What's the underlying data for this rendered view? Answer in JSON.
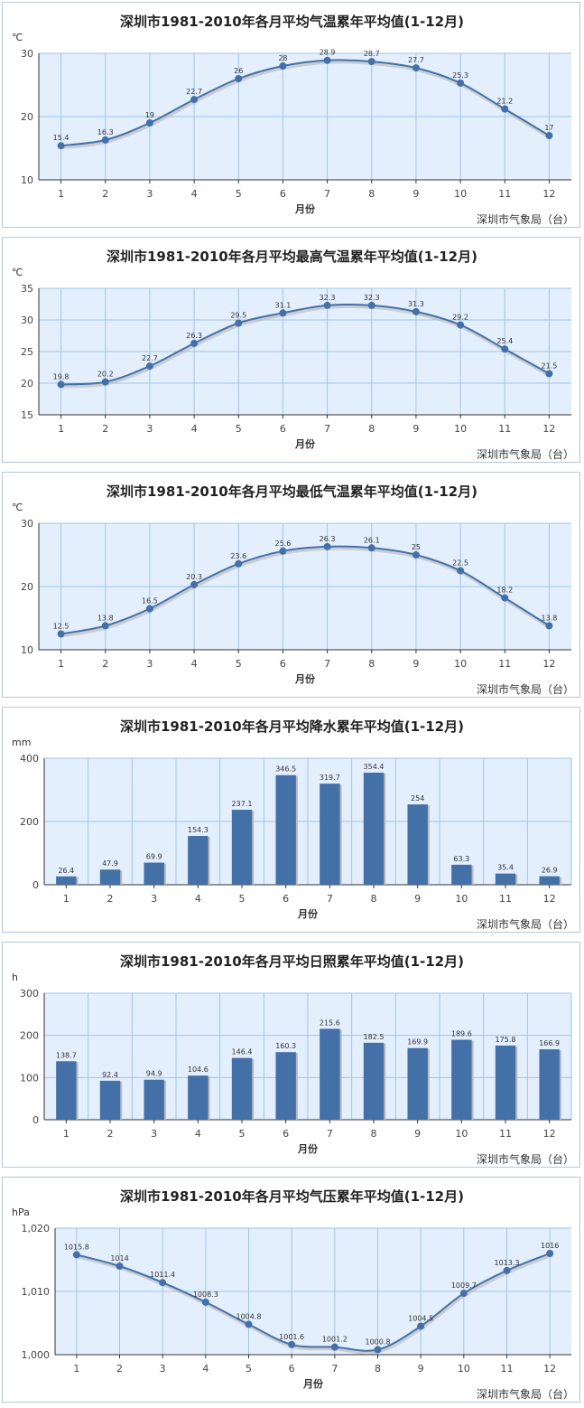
{
  "colors": {
    "plot_bg": "#e4effd",
    "grid": "#9cc6e6",
    "series": "#4470a8",
    "line_shadow": "#b8b8b8",
    "axis": "#333333"
  },
  "chart_data": [
    {
      "type": "line",
      "title": "深圳市1981-2010年各月平均气温累年平均值(1-12月)",
      "ylabel": "℃",
      "xlabel": "月份",
      "source": "深圳市气象局（台）",
      "categories": [
        "1",
        "2",
        "3",
        "4",
        "5",
        "6",
        "7",
        "8",
        "9",
        "10",
        "11",
        "12"
      ],
      "yticks": [
        "10",
        "20",
        "30"
      ],
      "ylim": [
        10,
        30
      ],
      "grid": true,
      "series": [
        {
          "values": [
            15.4,
            16.3,
            19,
            22.7,
            26,
            28,
            28.9,
            28.7,
            27.7,
            25.3,
            21.2,
            17
          ]
        }
      ]
    },
    {
      "type": "line",
      "title": "深圳市1981-2010年各月平均最高气温累年平均值(1-12月)",
      "ylabel": "℃",
      "xlabel": "月份",
      "source": "深圳市气象局（台）",
      "categories": [
        "1",
        "2",
        "3",
        "4",
        "5",
        "6",
        "7",
        "8",
        "9",
        "10",
        "11",
        "12"
      ],
      "yticks": [
        "15",
        "20",
        "25",
        "30",
        "35"
      ],
      "ylim": [
        15,
        35
      ],
      "grid": true,
      "series": [
        {
          "values": [
            19.8,
            20.2,
            22.7,
            26.3,
            29.5,
            31.1,
            32.3,
            32.3,
            31.3,
            29.2,
            25.4,
            21.5
          ]
        }
      ]
    },
    {
      "type": "line",
      "title": "深圳市1981-2010年各月平均最低气温累年平均值(1-12月)",
      "ylabel": "℃",
      "xlabel": "月份",
      "source": "深圳市气象局（台）",
      "categories": [
        "1",
        "2",
        "3",
        "4",
        "5",
        "6",
        "7",
        "8",
        "9",
        "10",
        "11",
        "12"
      ],
      "yticks": [
        "10",
        "20",
        "30"
      ],
      "ylim": [
        10,
        30
      ],
      "grid": true,
      "series": [
        {
          "values": [
            12.5,
            13.8,
            16.5,
            20.3,
            23.6,
            25.6,
            26.3,
            26.1,
            25,
            22.5,
            18.2,
            13.8
          ]
        }
      ]
    },
    {
      "type": "bar",
      "title": "深圳市1981-2010年各月平均降水累年平均值(1-12月)",
      "ylabel": "mm",
      "xlabel": "月份",
      "source": "深圳市气象局（台）",
      "categories": [
        "1",
        "2",
        "3",
        "4",
        "5",
        "6",
        "7",
        "8",
        "9",
        "10",
        "11",
        "12"
      ],
      "yticks": [
        "0",
        "200",
        "400"
      ],
      "ylim": [
        0,
        400
      ],
      "grid": true,
      "series": [
        {
          "values": [
            26.4,
            47.9,
            69.9,
            154.3,
            237.1,
            346.5,
            319.7,
            354.4,
            254,
            63.3,
            35.4,
            26.9
          ]
        }
      ]
    },
    {
      "type": "bar",
      "title": "深圳市1981-2010年各月平均日照累年平均值(1-12月)",
      "ylabel": "h",
      "xlabel": "月份",
      "source": "深圳市气象局（台）",
      "categories": [
        "1",
        "2",
        "3",
        "4",
        "5",
        "6",
        "7",
        "8",
        "9",
        "10",
        "11",
        "12"
      ],
      "yticks": [
        "0",
        "100",
        "200",
        "300"
      ],
      "ylim": [
        0,
        300
      ],
      "grid": true,
      "series": [
        {
          "values": [
            138.7,
            92.4,
            94.9,
            104.6,
            146.4,
            160.3,
            215.6,
            182.5,
            169.9,
            189.6,
            175.8,
            166.9
          ]
        }
      ]
    },
    {
      "type": "line",
      "title": "深圳市1981-2010年各月平均气压累年平均值(1-12月)",
      "ylabel": "hPa",
      "xlabel": "月份",
      "source": "深圳市气象局（台）",
      "categories": [
        "1",
        "2",
        "3",
        "4",
        "5",
        "6",
        "7",
        "8",
        "9",
        "10",
        "11",
        "12"
      ],
      "yticks": [
        "1,000",
        "1,010",
        "1,020"
      ],
      "ylim": [
        1000,
        1020
      ],
      "grid": true,
      "series": [
        {
          "values": [
            1015.8,
            1014,
            1011.4,
            1008.3,
            1004.8,
            1001.6,
            1001.2,
            1000.8,
            1004.5,
            1009.7,
            1013.3,
            1016
          ]
        }
      ]
    }
  ]
}
